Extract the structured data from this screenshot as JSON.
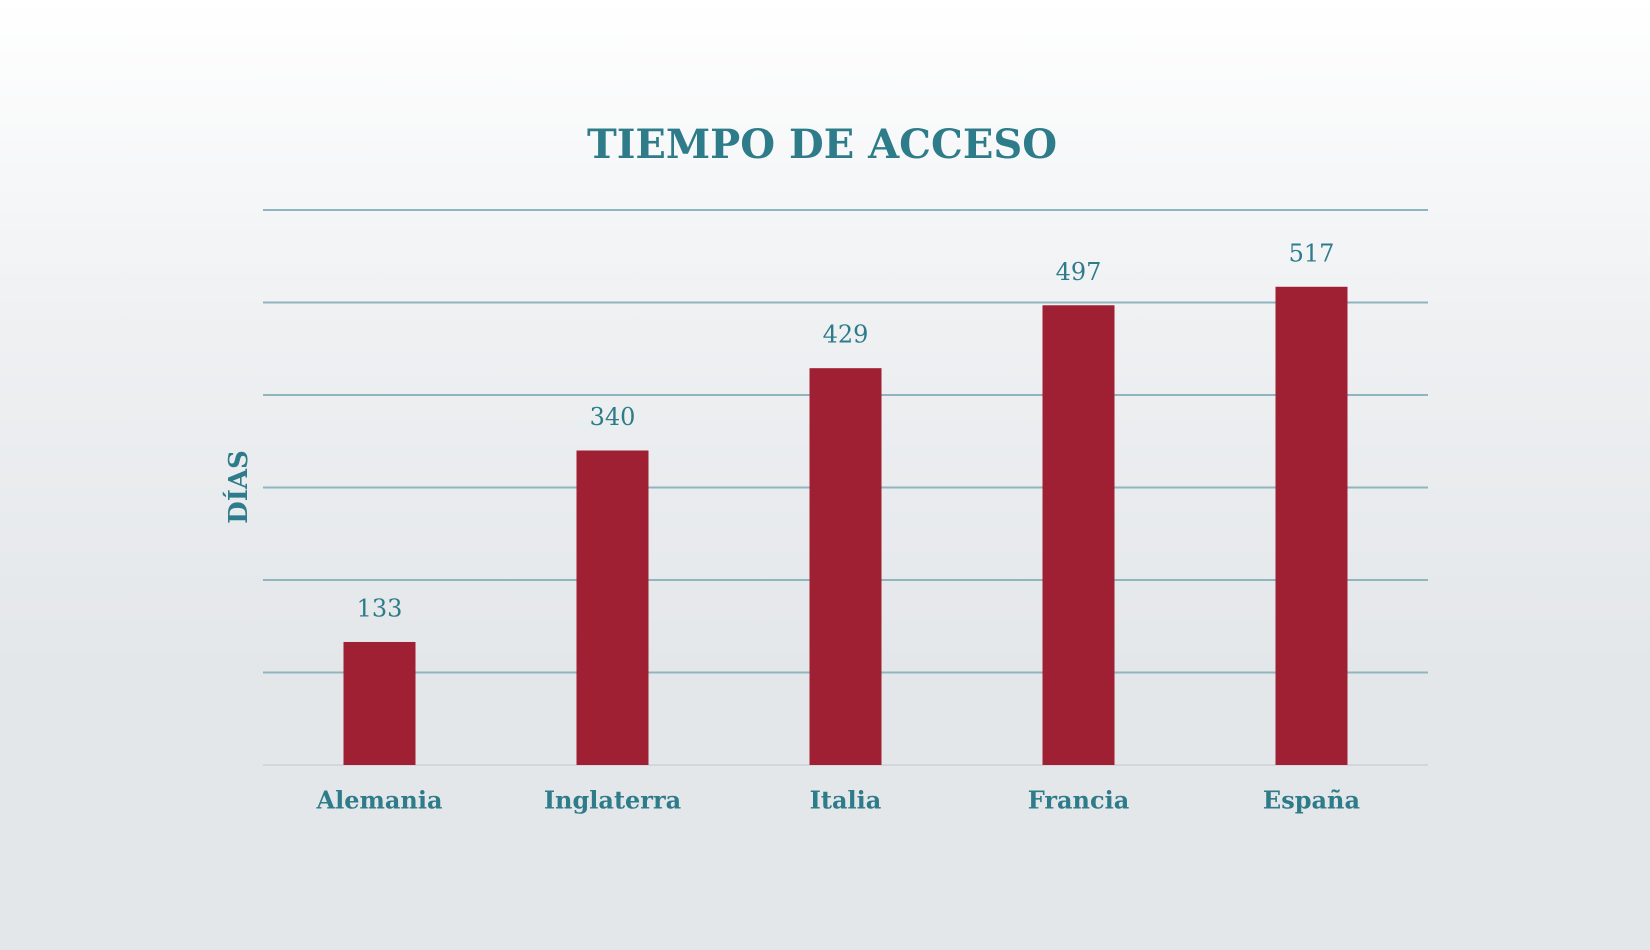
{
  "chart_data": {
    "type": "bar",
    "title": "TIEMPO DE ACCESO",
    "y_label": "DÍAS",
    "categories": [
      "Alemania",
      "Inglaterra",
      "Italia",
      "Francia",
      "España"
    ],
    "values": [
      133,
      340,
      429,
      497,
      517
    ],
    "color": "#9e2032",
    "ylim": [
      0,
      600
    ],
    "yticks": [
      0,
      100,
      200,
      300,
      400,
      500,
      600
    ],
    "grid": true
  }
}
